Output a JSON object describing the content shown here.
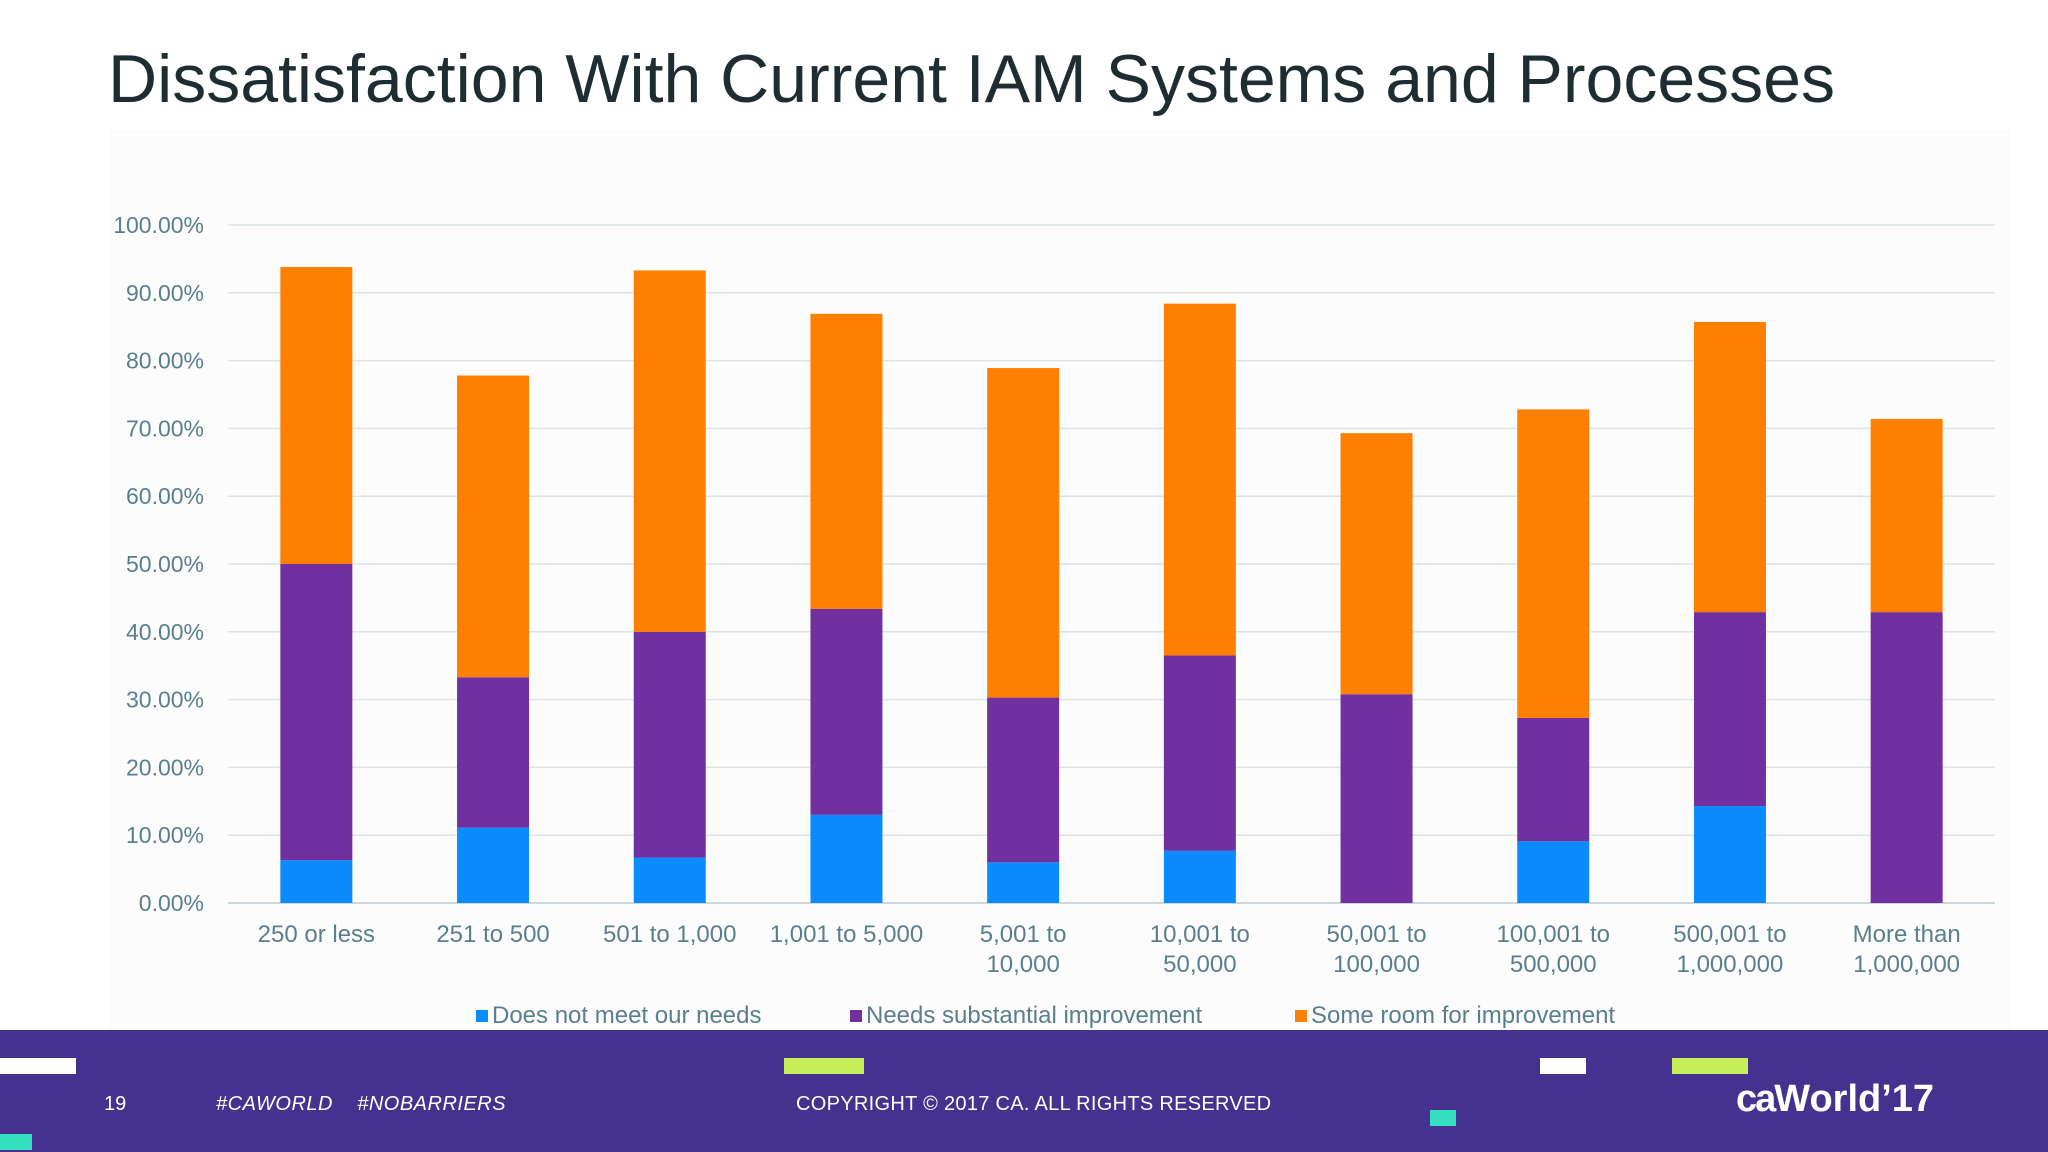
{
  "slide": {
    "title": "Dissatisfaction With Current IAM Systems and Processes"
  },
  "footer": {
    "page_number": "19",
    "hashtags": "#CAWORLD    #NOBARRIERS",
    "copyright": "COPYRIGHT © 2017 CA. ALL RIGHTS RESERVED",
    "logo_ca": "ca",
    "logo_world": "World",
    "logo_year": "’17",
    "background_color": "#45318e"
  },
  "chart_data": {
    "type": "bar",
    "stacked": true,
    "title": "",
    "xlabel": "",
    "ylabel": "",
    "ylim": [
      0,
      1
    ],
    "yticks": [
      "0.00%",
      "10.00%",
      "20.00%",
      "30.00%",
      "40.00%",
      "50.00%",
      "60.00%",
      "70.00%",
      "80.00%",
      "90.00%",
      "100.00%"
    ],
    "grid": true,
    "legend_position": "bottom",
    "categories": [
      [
        "250 or less"
      ],
      [
        "251 to 500"
      ],
      [
        "501 to 1,000"
      ],
      [
        "1,001 to 5,000"
      ],
      [
        "5,001 to",
        "10,000"
      ],
      [
        "10,001 to",
        "50,000"
      ],
      [
        "50,001 to",
        "100,000"
      ],
      [
        "100,001 to",
        "500,000"
      ],
      [
        "500,001 to",
        "1,000,000"
      ],
      [
        "More than",
        "1,000,000"
      ]
    ],
    "series": [
      {
        "name": "Does not meet our needs",
        "color": "#0a8cff",
        "values": [
          0.063,
          0.111,
          0.067,
          0.13,
          0.06,
          0.077,
          0.0,
          0.091,
          0.143,
          0.0
        ]
      },
      {
        "name": "Needs substantial improvement",
        "color": "#7030a0",
        "values": [
          0.437,
          0.222,
          0.333,
          0.304,
          0.243,
          0.288,
          0.308,
          0.182,
          0.286,
          0.429
        ]
      },
      {
        "name": "Some room for improvement",
        "color": "#ff7f00",
        "values": [
          0.438,
          0.445,
          0.533,
          0.435,
          0.486,
          0.519,
          0.385,
          0.455,
          0.428,
          0.285
        ]
      }
    ]
  }
}
